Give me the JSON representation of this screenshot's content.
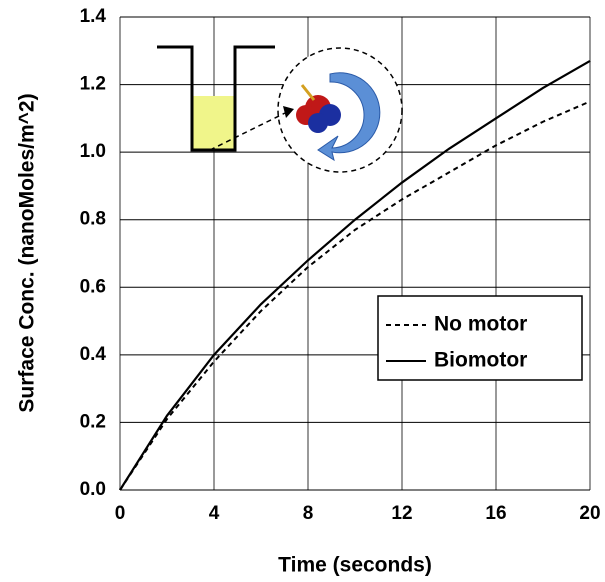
{
  "chart_data": {
    "type": "line",
    "x_label": "Time (seconds)",
    "y_label": "Surface Conc. (nanoMoles/m^2)",
    "x": [
      0,
      2,
      4,
      6,
      8,
      10,
      12,
      14,
      16,
      18,
      20
    ],
    "series": [
      {
        "name": "No motor",
        "color": "#000000",
        "dash": true,
        "values": [
          0,
          0.21,
          0.38,
          0.53,
          0.66,
          0.77,
          0.86,
          0.94,
          1.02,
          1.09,
          1.15
        ]
      },
      {
        "name": "Biomotor",
        "color": "#000000",
        "dash": false,
        "values": [
          0,
          0.22,
          0.4,
          0.55,
          0.68,
          0.8,
          0.91,
          1.01,
          1.1,
          1.19,
          1.27
        ]
      }
    ],
    "xlim": [
      0,
      20
    ],
    "xticks": [
      0,
      4,
      8,
      12,
      16,
      20
    ],
    "ylim": [
      0,
      1.4
    ],
    "yticks": [
      {
        "value": 0,
        "label": "0.0"
      },
      {
        "value": 0.2,
        "label": "0.2"
      },
      {
        "value": 0.4,
        "label": "0.4"
      },
      {
        "value": 0.6,
        "label": "0.6"
      },
      {
        "value": 0.8,
        "label": "0.8"
      },
      {
        "value": 1,
        "label": "1.0"
      },
      {
        "value": 1.2,
        "label": "1.2"
      },
      {
        "value": 1.4,
        "label": "1.4"
      }
    ],
    "grid": true,
    "legend": "right"
  }
}
